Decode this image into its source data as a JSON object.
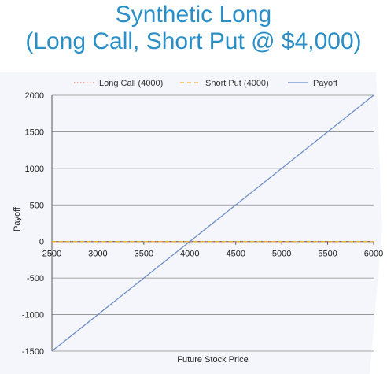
{
  "title_line1": "Synthetic Long",
  "title_line2": "(Long Call, Short Put @ $4,000)",
  "chart_data": {
    "type": "line",
    "xlabel": "Future Stock Price",
    "ylabel": "Payoff",
    "xlim": [
      2500,
      6000
    ],
    "ylim": [
      -1500,
      2000
    ],
    "xticks": [
      2500,
      3000,
      3500,
      4000,
      4500,
      5000,
      5500,
      6000
    ],
    "yticks": [
      -1500,
      -1000,
      -500,
      0,
      500,
      1000,
      1500,
      2000
    ],
    "xtick_labels": [
      "2500",
      "3000",
      "3500",
      "4000",
      "4500",
      "5000",
      "5500",
      "6000"
    ],
    "ytick_labels": [
      "-1500",
      "-1000",
      "-500",
      "0",
      "500",
      "1000",
      "1500",
      "2000"
    ],
    "grid": true,
    "legend_position": "top",
    "series": [
      {
        "name": "Long Call (4000)",
        "color": "#e8866a",
        "style": "dotted",
        "x": [
          2500,
          6000
        ],
        "y": [
          0,
          0
        ]
      },
      {
        "name": "Short Put (4000)",
        "color": "#f0b429",
        "style": "dashed",
        "x": [
          2500,
          6000
        ],
        "y": [
          0,
          0
        ]
      },
      {
        "name": "Payoff",
        "color": "#6f8fc4",
        "style": "solid",
        "x": [
          2500,
          6000
        ],
        "y": [
          -1500,
          2000
        ]
      }
    ]
  }
}
